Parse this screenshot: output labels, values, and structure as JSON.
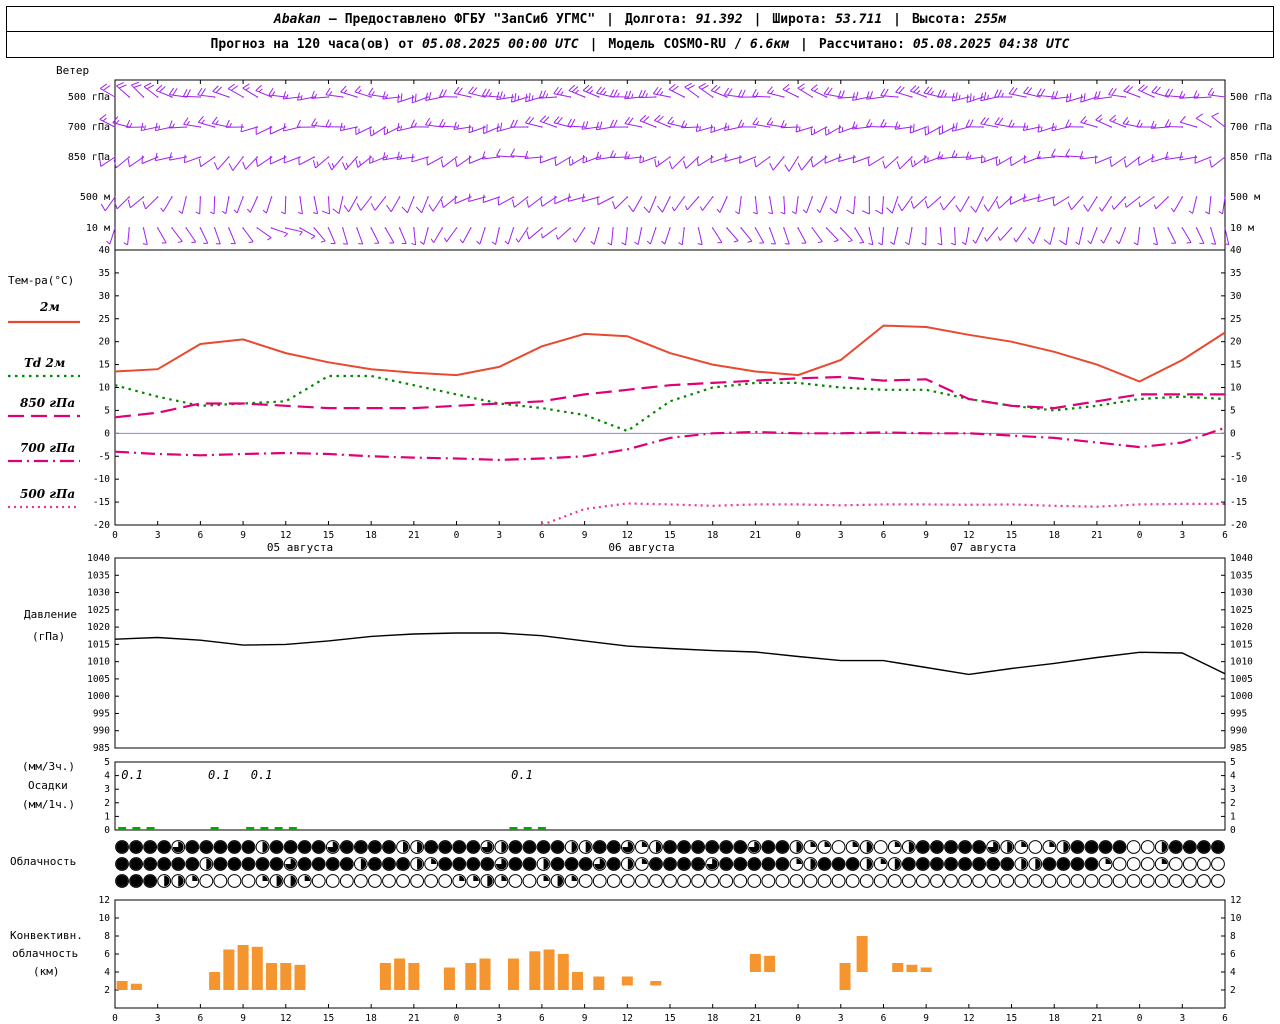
{
  "header": {
    "line1": {
      "station": "Abakan",
      "dash": "—",
      "provider": "Предоставлено ФГБУ \"ЗапСиб УГМС\"",
      "sep": "|",
      "lon_label": "Долгота:",
      "lon_value": "91.392",
      "lat_label": "Широта:",
      "lat_value": "53.711",
      "alt_label": "Высота:",
      "alt_value": "255м"
    },
    "line2": {
      "forecast_label": "Прогноз на 120 часа(ов) от",
      "run_time": "05.08.2025 00:00 UTC",
      "sep": "|",
      "model_label": "Модель",
      "model_name": "COSMO-RU",
      "model_sep": "/",
      "model_res": "6.6км",
      "calc_label": "Рассчитано:",
      "calc_time": "05.08.2025 04:38 UTC"
    }
  },
  "panels": {
    "wind": {
      "title": "Ветер",
      "levels": [
        "500 гПа",
        "700 гПа",
        "850 гПа",
        "500 м",
        "10 м"
      ]
    },
    "temp": {
      "title": "Тем-ра(°C)",
      "legend": [
        {
          "label": "2м"
        },
        {
          "label": "Td 2м"
        },
        {
          "label": "850 гПа"
        },
        {
          "label": "700 гПа"
        },
        {
          "label": "500 гПа"
        }
      ]
    },
    "pressure": {
      "title_line1": "Давление",
      "title_line2": "(гПа)"
    },
    "precip": {
      "label_line1": "(мм/3ч.)",
      "label_line2": "Осадки",
      "label_line3": "(мм/1ч.)"
    },
    "cloud": {
      "title": "Облачность"
    },
    "convective": {
      "title_line1": "Конвективн.",
      "title_line2": "облачность",
      "title_line3": "(км)"
    }
  },
  "axis": {
    "hour_labels": [
      "0",
      "3",
      "6",
      "9",
      "12",
      "15",
      "18",
      "21",
      "0",
      "3",
      "6",
      "9",
      "12",
      "15",
      "18",
      "21",
      "0",
      "3",
      "6",
      "9",
      "12",
      "15",
      "18",
      "21",
      "0",
      "3",
      "6"
    ],
    "hour_values": [
      0,
      3,
      6,
      9,
      12,
      15,
      18,
      21,
      24,
      27,
      30,
      33,
      36,
      39,
      42,
      45,
      48,
      51,
      54,
      57,
      60,
      63,
      66,
      69,
      72,
      75,
      78
    ],
    "date_labels": [
      "05 августа",
      "06 августа",
      "07 августа"
    ],
    "date_centers_h": [
      13,
      37,
      61
    ],
    "temp_ticks": [
      40,
      35,
      30,
      25,
      20,
      15,
      10,
      5,
      0,
      -5,
      -10,
      -15,
      -20
    ],
    "pressure_ticks": [
      1040,
      1035,
      1030,
      1025,
      1020,
      1015,
      1010,
      1005,
      1000,
      995,
      990,
      985
    ],
    "precip_ticks": [
      5,
      4,
      3,
      2,
      1,
      0
    ],
    "conv_ticks": [
      12,
      10,
      8,
      6,
      4,
      2
    ]
  },
  "colors": {
    "temp_2m": "#e84a2f",
    "td_2m": "#008800",
    "t850": "#dd0077",
    "t700": "#dd0077",
    "t500": "#ee3399",
    "pressure": "#000000",
    "precip": "#00aa00",
    "convective": "#f5952f",
    "wind_barb": "#a020f0",
    "zero_line": "#8585e0"
  },
  "chart_data": [
    {
      "id": "temperature",
      "type": "line",
      "title": "Тем-ра(°C)",
      "ylim": [
        -20,
        40
      ],
      "x_hours": [
        0,
        3,
        6,
        9,
        12,
        15,
        18,
        21,
        24,
        27,
        30,
        33,
        36,
        39,
        42,
        45,
        48,
        51,
        54,
        57,
        60,
        63,
        66,
        69,
        72,
        75,
        78
      ],
      "series": [
        {
          "name": "2м",
          "style": "solid",
          "color_key": "temp_2m",
          "values": [
            13.5,
            14,
            19.5,
            20.5,
            17.5,
            15.5,
            14,
            13.2,
            12.7,
            14.5,
            19,
            21.7,
            21.2,
            17.5,
            15,
            13.5,
            12.7,
            16,
            23.5,
            23.2,
            21.5,
            20,
            17.8,
            15,
            11.3,
            16,
            22
          ]
        },
        {
          "name": "Td 2м",
          "style": "dotted",
          "color_key": "td_2m",
          "values": [
            10.5,
            8,
            6,
            6.5,
            7,
            12.5,
            12.5,
            10.5,
            8.5,
            6.5,
            5.5,
            4,
            0.5,
            7,
            10,
            11,
            11,
            10,
            9.5,
            9.5,
            7.5,
            6,
            5,
            6,
            7.5,
            8,
            7.5
          ]
        },
        {
          "name": "850 гПа",
          "style": "longdash",
          "color_key": "t850",
          "values": [
            3.5,
            4.5,
            6.5,
            6.5,
            6,
            5.5,
            5.5,
            5.5,
            6,
            6.5,
            7,
            8.5,
            9.5,
            10.5,
            11,
            11.5,
            12,
            12.3,
            11.5,
            11.8,
            7.5,
            6,
            5.5,
            7,
            8.5,
            8.5,
            8.5
          ]
        },
        {
          "name": "700 гПа",
          "style": "dashdot",
          "color_key": "t700",
          "values": [
            -4,
            -4.5,
            -4.8,
            -4.5,
            -4.3,
            -4.5,
            -5,
            -5.3,
            -5.5,
            -5.8,
            -5.5,
            -5,
            -3.5,
            -1,
            0,
            0.3,
            0,
            0,
            0.2,
            0,
            0,
            -0.5,
            -1,
            -2,
            -3,
            -2,
            1.2
          ]
        },
        {
          "name": "500 гПа",
          "style": "finedot",
          "color_key": "t500",
          "values": [
            null,
            null,
            null,
            null,
            null,
            null,
            null,
            null,
            null,
            null,
            -20,
            -16.5,
            -15.3,
            -15.5,
            -15.8,
            -15.5,
            -15.5,
            -15.7,
            -15.5,
            -15.5,
            -15.6,
            -15.5,
            -15.8,
            -16,
            -15.5,
            -15.4,
            -15.4
          ]
        }
      ]
    },
    {
      "id": "pressure",
      "type": "line",
      "title": "Давление (гПа)",
      "ylim": [
        985,
        1040
      ],
      "x_hours": [
        0,
        3,
        6,
        9,
        12,
        15,
        18,
        21,
        24,
        27,
        30,
        33,
        36,
        39,
        42,
        45,
        48,
        51,
        54,
        57,
        60,
        63,
        66,
        69,
        72,
        75,
        78
      ],
      "values": [
        1016.5,
        1017,
        1016.2,
        1014.8,
        1015,
        1016,
        1017.3,
        1018,
        1018.3,
        1018.3,
        1017.5,
        1016,
        1014.5,
        1013.8,
        1013.2,
        1012.8,
        1011.5,
        1010.3,
        1010.3,
        1008.3,
        1006.3,
        1008,
        1009.5,
        1011.2,
        1012.7,
        1012.5,
        1006.5
      ]
    },
    {
      "id": "precipitation",
      "type": "bar",
      "title": "Осадки (мм/3ч., мм/1ч.)",
      "ylim": [
        0,
        5
      ],
      "bars": [
        {
          "h": 0.5,
          "v": 0.15
        },
        {
          "h": 1.5,
          "v": 0.2
        },
        {
          "h": 2.5,
          "v": 0.1
        },
        {
          "h": 7,
          "v": 0.1
        },
        {
          "h": 9.5,
          "v": 0.1
        },
        {
          "h": 10.5,
          "v": 0.2
        },
        {
          "h": 11.5,
          "v": 0.15
        },
        {
          "h": 12.5,
          "v": 0.1
        },
        {
          "h": 28,
          "v": 0.1
        },
        {
          "h": 29,
          "v": 0.15
        },
        {
          "h": 30,
          "v": 0.1
        }
      ],
      "value_labels": [
        {
          "h": 1.2,
          "text": "0.1"
        },
        {
          "h": 7.3,
          "text": "0.1"
        },
        {
          "h": 10.3,
          "text": "0.1"
        },
        {
          "h": 28.6,
          "text": "0.1"
        }
      ]
    },
    {
      "id": "cloudiness",
      "type": "symbols",
      "title": "Облачность",
      "octas_max": 8,
      "rows": [
        [
          8,
          8,
          8,
          8,
          6,
          8,
          8,
          8,
          8,
          8,
          4,
          8,
          8,
          8,
          8,
          6,
          8,
          8,
          8,
          8,
          4,
          4,
          8,
          8,
          8,
          8,
          6,
          4,
          8,
          8,
          8,
          8,
          4,
          4,
          8,
          8,
          6,
          2,
          4,
          8,
          8,
          8,
          8,
          8,
          8,
          6,
          8,
          8,
          4,
          2,
          2,
          0,
          2,
          4,
          0,
          2,
          4,
          8,
          8,
          8,
          8,
          8,
          6,
          4,
          2,
          0,
          2,
          4,
          8,
          8,
          8,
          8,
          0,
          0,
          4,
          8,
          8,
          8,
          8
        ],
        [
          8,
          8,
          8,
          8,
          8,
          8,
          4,
          8,
          8,
          8,
          8,
          8,
          6,
          8,
          8,
          8,
          8,
          4,
          8,
          8,
          8,
          4,
          2,
          8,
          8,
          8,
          8,
          6,
          8,
          8,
          4,
          8,
          8,
          8,
          6,
          8,
          4,
          2,
          8,
          8,
          8,
          8,
          6,
          8,
          8,
          8,
          8,
          8,
          2,
          4,
          8,
          8,
          8,
          4,
          2,
          4,
          8,
          8,
          8,
          8,
          8,
          8,
          8,
          8,
          4,
          4,
          8,
          8,
          8,
          8,
          2,
          0,
          0,
          0,
          2,
          0,
          0,
          0,
          0
        ],
        [
          8,
          8,
          8,
          4,
          4,
          2,
          0,
          0,
          0,
          0,
          2,
          4,
          4,
          2,
          0,
          0,
          0,
          0,
          0,
          0,
          0,
          0,
          0,
          0,
          2,
          2,
          4,
          2,
          0,
          0,
          2,
          4,
          2,
          0,
          0,
          0,
          0,
          0,
          0,
          0,
          0,
          0,
          0,
          0,
          0,
          0,
          0,
          0,
          0,
          0,
          0,
          0,
          0,
          0,
          0,
          0,
          0,
          0,
          0,
          0,
          0,
          0,
          0,
          0,
          0,
          0,
          0,
          0,
          0,
          0,
          0,
          0,
          0,
          0,
          0,
          0,
          0,
          0,
          0
        ]
      ]
    },
    {
      "id": "convective_clouds",
      "type": "bar",
      "title": "Конвективная облачность (км)",
      "ylim": [
        0,
        12
      ],
      "bars": [
        {
          "h": 0.5,
          "base": 2,
          "top": 3
        },
        {
          "h": 1.5,
          "base": 2,
          "top": 2.7
        },
        {
          "h": 7,
          "base": 2,
          "top": 4
        },
        {
          "h": 8,
          "base": 2,
          "top": 6.5
        },
        {
          "h": 9,
          "base": 2,
          "top": 7
        },
        {
          "h": 10,
          "base": 2,
          "top": 6.8
        },
        {
          "h": 11,
          "base": 2,
          "top": 5
        },
        {
          "h": 12,
          "base": 2,
          "top": 5
        },
        {
          "h": 13,
          "base": 2,
          "top": 4.8
        },
        {
          "h": 19,
          "base": 2,
          "top": 5
        },
        {
          "h": 20,
          "base": 2,
          "top": 5.5
        },
        {
          "h": 21,
          "base": 2,
          "top": 5
        },
        {
          "h": 23.5,
          "base": 2,
          "top": 4.5
        },
        {
          "h": 25,
          "base": 2,
          "top": 5
        },
        {
          "h": 26,
          "base": 2,
          "top": 5.5
        },
        {
          "h": 28,
          "base": 2,
          "top": 5.5
        },
        {
          "h": 29.5,
          "base": 2,
          "top": 6.3
        },
        {
          "h": 30.5,
          "base": 2,
          "top": 6.5
        },
        {
          "h": 31.5,
          "base": 2,
          "top": 6
        },
        {
          "h": 32.5,
          "base": 2,
          "top": 4
        },
        {
          "h": 34,
          "base": 2,
          "top": 3.5
        },
        {
          "h": 36,
          "base": 2.5,
          "top": 3.5
        },
        {
          "h": 38,
          "base": 2.5,
          "top": 3
        },
        {
          "h": 45,
          "base": 4,
          "top": 6
        },
        {
          "h": 46,
          "base": 4,
          "top": 5.8
        },
        {
          "h": 51.3,
          "base": 2,
          "top": 5
        },
        {
          "h": 52.5,
          "base": 4,
          "top": 8
        },
        {
          "h": 55,
          "base": 4,
          "top": 5
        },
        {
          "h": 56,
          "base": 4,
          "top": 4.8
        },
        {
          "h": 57,
          "base": 4,
          "top": 4.5
        }
      ]
    },
    {
      "id": "wind_barbs",
      "type": "barbs",
      "title": "Ветер",
      "control_hours": [
        0,
        6,
        12,
        18,
        24,
        30,
        36,
        42,
        48,
        54,
        60,
        66,
        72,
        78
      ],
      "levels": [
        {
          "name": "500 гПа",
          "dir": [
            300,
            290,
            280,
            270,
            265,
            270,
            280,
            290,
            285,
            275,
            270,
            265,
            275,
            285
          ],
          "speed": [
            20,
            20,
            15,
            15,
            20,
            25,
            25,
            20,
            15,
            20,
            25,
            20,
            20,
            15
          ]
        },
        {
          "name": "700 гПа",
          "dir": [
            280,
            270,
            260,
            255,
            260,
            270,
            280,
            270,
            260,
            255,
            260,
            270,
            280,
            290
          ],
          "speed": [
            15,
            15,
            10,
            15,
            15,
            20,
            20,
            15,
            15,
            15,
            20,
            15,
            15,
            10
          ]
        },
        {
          "name": "850 гПа",
          "dir": [
            250,
            240,
            230,
            240,
            250,
            260,
            250,
            240,
            230,
            240,
            250,
            260,
            250,
            240
          ],
          "speed": [
            10,
            10,
            10,
            15,
            10,
            10,
            15,
            10,
            10,
            10,
            15,
            10,
            10,
            10
          ]
        },
        {
          "name": "500 м",
          "dir": [
            220,
            200,
            180,
            200,
            230,
            250,
            230,
            200,
            180,
            200,
            220,
            240,
            220,
            200
          ],
          "speed": [
            10,
            5,
            5,
            10,
            10,
            10,
            10,
            5,
            5,
            10,
            10,
            10,
            5,
            5
          ]
        },
        {
          "name": "10 м",
          "dir": [
            180,
            150,
            120,
            160,
            200,
            220,
            200,
            160,
            140,
            170,
            200,
            210,
            180,
            150
          ],
          "speed": [
            5,
            5,
            3,
            5,
            5,
            8,
            5,
            5,
            3,
            5,
            5,
            8,
            5,
            3
          ]
        }
      ]
    }
  ]
}
